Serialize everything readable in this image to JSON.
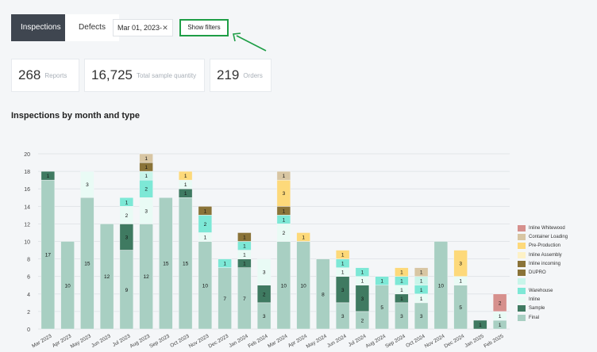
{
  "tabs": [
    {
      "label": "Inspections"
    },
    {
      "label": "Defects"
    }
  ],
  "date_filter": {
    "value": "Mar 01, 2023-",
    "clear_icon": "close-icon"
  },
  "show_filters": {
    "label": "Show filters"
  },
  "stats": [
    {
      "value": "268",
      "label": "Reports"
    },
    {
      "value": "16,725",
      "label": "Total sample quantity"
    },
    {
      "value": "219",
      "label": "Orders"
    }
  ],
  "chart_data": {
    "type": "bar",
    "stacked": true,
    "title": "Inspections by month and type",
    "ylim": [
      0,
      20
    ],
    "yticks": [
      0,
      2,
      4,
      6,
      8,
      10,
      12,
      14,
      16,
      18,
      20
    ],
    "grid": true,
    "legend_position": "right",
    "categories": [
      "Mar 2023",
      "Apr 2023",
      "May 2023",
      "Jun 2023",
      "Jul 2023",
      "Aug 2023",
      "Sep 2023",
      "Oct 2023",
      "Nov 2023",
      "Dec 2023",
      "Jan 2024",
      "Feb 2024",
      "Mar 2024",
      "Apr 2024",
      "May 2024",
      "Jun 2024",
      "Jul 2024",
      "Aug 2024",
      "Sep 2024",
      "Oct 2024",
      "Nov 2024",
      "Dec 2024",
      "Jan 2025",
      "Feb 2025"
    ],
    "series": [
      {
        "name": "Final",
        "color": "#a8cfc2",
        "values": [
          17,
          10,
          15,
          12,
          9,
          12,
          15,
          15,
          10,
          7,
          7,
          3,
          10,
          10,
          8,
          3,
          2,
          5,
          3,
          3,
          10,
          5,
          0,
          1
        ]
      },
      {
        "name": "Sample",
        "color": "#3f7a61",
        "values": [
          1,
          0,
          0,
          0,
          3,
          0,
          0,
          1,
          0,
          0,
          1,
          2,
          0,
          0,
          0,
          3,
          3,
          0,
          1,
          0,
          0,
          0,
          1,
          0
        ]
      },
      {
        "name": "Inline",
        "color": "#e9fbf5",
        "values": [
          0,
          0,
          3,
          0,
          2,
          3,
          0,
          1,
          1,
          0,
          1,
          3,
          2,
          0,
          0,
          1,
          1,
          0,
          1,
          1,
          0,
          1,
          0,
          1
        ]
      },
      {
        "name": "Warehouse",
        "color": "#7de8d6",
        "values": [
          0,
          0,
          0,
          0,
          1,
          2,
          0,
          0,
          2,
          1,
          1,
          0,
          1,
          0,
          0,
          1,
          1,
          1,
          1,
          1,
          0,
          0,
          0,
          0
        ]
      },
      {
        "name": "",
        "color": "#c8f5ea",
        "values": [
          0,
          0,
          0,
          0,
          0,
          1,
          0,
          0,
          0,
          0,
          0,
          0,
          0,
          0,
          0,
          0,
          0,
          0,
          0,
          1,
          0,
          0,
          0,
          0
        ]
      },
      {
        "name": "DUPRO",
        "color": "#8a7338",
        "values": [
          0,
          0,
          0,
          0,
          0,
          1,
          0,
          0,
          1,
          0,
          1,
          0,
          1,
          0,
          0,
          0,
          0,
          0,
          0,
          0,
          0,
          0,
          0,
          0
        ]
      },
      {
        "name": "Inline incoming",
        "color": "#8a7338",
        "values": [
          0,
          0,
          0,
          0,
          0,
          0,
          0,
          0,
          0,
          0,
          0,
          0,
          0,
          0,
          0,
          0,
          0,
          0,
          0,
          0,
          0,
          0,
          0,
          0
        ]
      },
      {
        "name": "Inline Assembly",
        "color": "#fdf1c6",
        "values": [
          0,
          0,
          0,
          0,
          0,
          0,
          0,
          0,
          0,
          0,
          0,
          0,
          0,
          0,
          0,
          0,
          0,
          0,
          0,
          0,
          0,
          0,
          0,
          0
        ]
      },
      {
        "name": "Pre-Production",
        "color": "#fdd97a",
        "values": [
          0,
          0,
          0,
          0,
          0,
          0,
          0,
          1,
          0,
          0,
          0,
          0,
          3,
          1,
          0,
          1,
          0,
          0,
          1,
          0,
          0,
          3,
          0,
          0
        ]
      },
      {
        "name": "Container Loading",
        "color": "#d8c6a3",
        "values": [
          0,
          0,
          0,
          0,
          0,
          1,
          0,
          0,
          0,
          0,
          0,
          0,
          1,
          0,
          0,
          0,
          0,
          0,
          0,
          1,
          0,
          0,
          0,
          0
        ]
      },
      {
        "name": "Inline Whitewood",
        "color": "#d6908d",
        "values": [
          0,
          0,
          0,
          0,
          0,
          0,
          0,
          0,
          0,
          0,
          0,
          0,
          0,
          0,
          0,
          0,
          0,
          0,
          0,
          0,
          0,
          0,
          0,
          2
        ]
      }
    ]
  }
}
